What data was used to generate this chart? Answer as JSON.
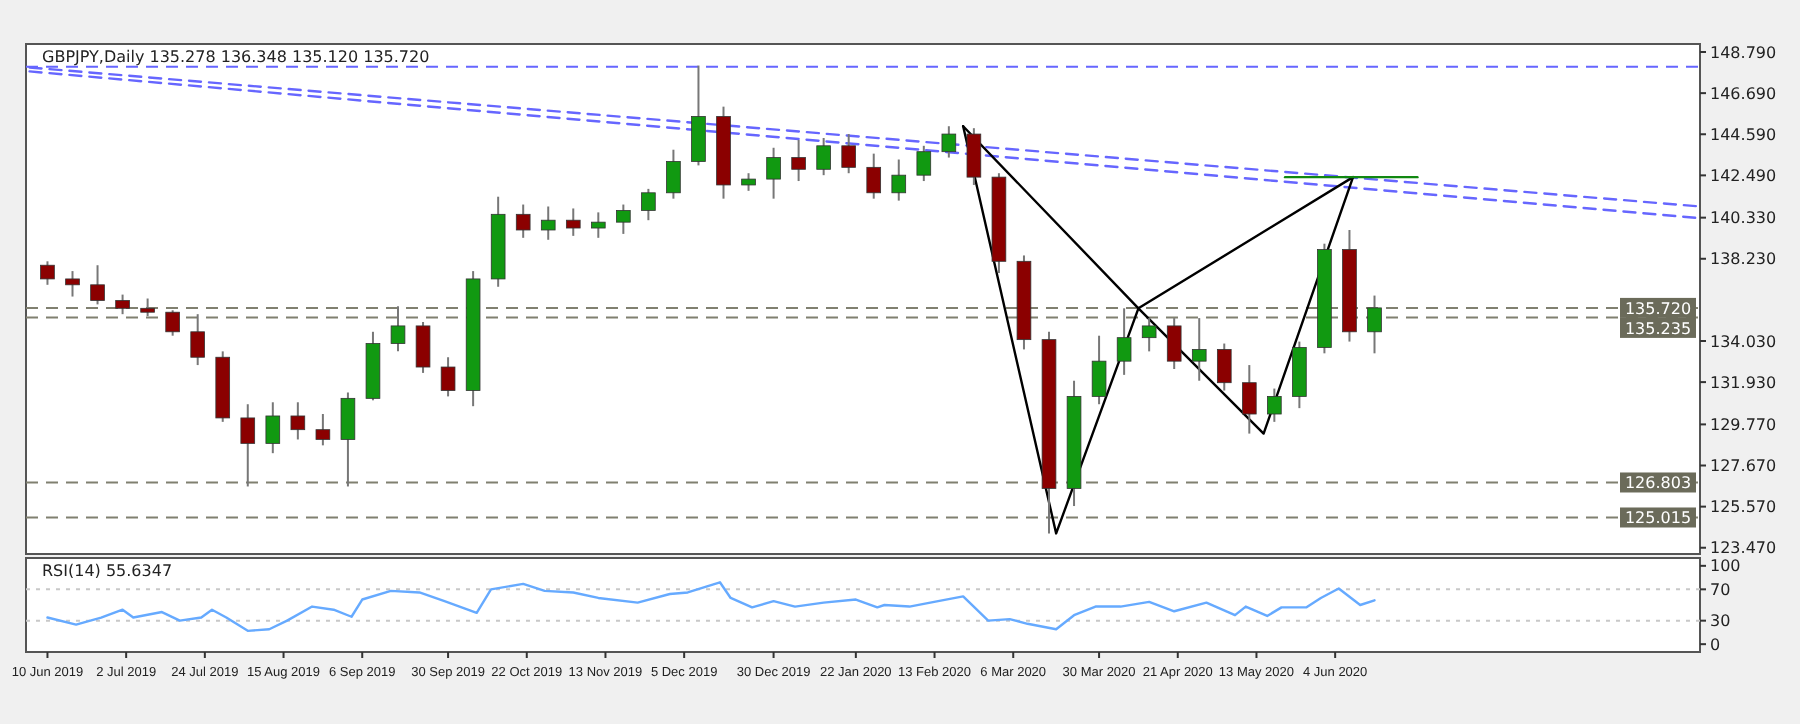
{
  "chart_data": [
    {
      "type": "candlestick",
      "title": "GBPJPY,Daily 135.278 136.348 135.120 135.720",
      "x": [
        "2019-06-10",
        "2019-06-17",
        "2019-06-24",
        "2019-07-01",
        "2019-07-08",
        "2019-07-15",
        "2019-07-22",
        "2019-07-29",
        "2019-08-05",
        "2019-08-12",
        "2019-08-19",
        "2019-08-26",
        "2019-09-02",
        "2019-09-09",
        "2019-09-16",
        "2019-09-23",
        "2019-09-30",
        "2019-10-07",
        "2019-10-14",
        "2019-10-21",
        "2019-10-28",
        "2019-11-04",
        "2019-11-11",
        "2019-11-18",
        "2019-11-25",
        "2019-12-02",
        "2019-12-09",
        "2019-12-16",
        "2019-12-23",
        "2019-12-30",
        "2020-01-06",
        "2020-01-13",
        "2020-01-20",
        "2020-01-27",
        "2020-02-03",
        "2020-02-10",
        "2020-02-17",
        "2020-02-24",
        "2020-03-02",
        "2020-03-09",
        "2020-03-16",
        "2020-03-23",
        "2020-03-30",
        "2020-04-06",
        "2020-04-13",
        "2020-04-20",
        "2020-04-27",
        "2020-05-04",
        "2020-05-11",
        "2020-05-18",
        "2020-05-25",
        "2020-06-01",
        "2020-06-08",
        "2020-06-15"
      ],
      "ohlc": [
        [
          137.9,
          138.1,
          136.9,
          137.2
        ],
        [
          137.2,
          137.6,
          136.3,
          136.9
        ],
        [
          136.9,
          137.9,
          135.9,
          136.1
        ],
        [
          136.1,
          136.4,
          135.4,
          135.7
        ],
        [
          135.7,
          136.2,
          135.3,
          135.5
        ],
        [
          135.5,
          135.6,
          134.3,
          134.5
        ],
        [
          134.5,
          135.4,
          132.8,
          133.2
        ],
        [
          133.2,
          133.5,
          129.9,
          130.1
        ],
        [
          130.1,
          130.8,
          126.6,
          128.8
        ],
        [
          128.8,
          130.9,
          128.3,
          130.2
        ],
        [
          130.2,
          130.9,
          129.0,
          129.5
        ],
        [
          129.5,
          130.3,
          128.7,
          129.0
        ],
        [
          129.0,
          131.4,
          126.6,
          131.1
        ],
        [
          131.1,
          134.5,
          131.0,
          133.9
        ],
        [
          133.9,
          135.8,
          133.5,
          134.8
        ],
        [
          134.8,
          135.0,
          132.4,
          132.7
        ],
        [
          132.7,
          133.2,
          131.2,
          131.5
        ],
        [
          131.5,
          137.6,
          130.7,
          137.2
        ],
        [
          137.2,
          141.4,
          136.8,
          140.5
        ],
        [
          140.5,
          141.0,
          139.3,
          139.7
        ],
        [
          139.7,
          140.9,
          139.2,
          140.2
        ],
        [
          140.2,
          140.8,
          139.4,
          139.8
        ],
        [
          139.8,
          140.6,
          139.3,
          140.1
        ],
        [
          140.1,
          141.0,
          139.5,
          140.7
        ],
        [
          140.7,
          141.8,
          140.2,
          141.6
        ],
        [
          141.6,
          143.8,
          141.3,
          143.2
        ],
        [
          143.2,
          148.1,
          143.0,
          145.5
        ],
        [
          145.5,
          146.0,
          141.3,
          142.0
        ],
        [
          142.0,
          142.6,
          141.7,
          142.3
        ],
        [
          142.3,
          143.9,
          141.3,
          143.4
        ],
        [
          143.4,
          144.3,
          142.2,
          142.8
        ],
        [
          142.8,
          144.4,
          142.5,
          144.0
        ],
        [
          144.0,
          144.6,
          142.6,
          142.9
        ],
        [
          142.9,
          143.6,
          141.3,
          141.6
        ],
        [
          141.6,
          143.3,
          141.2,
          142.5
        ],
        [
          142.5,
          144.0,
          142.2,
          143.7
        ],
        [
          143.7,
          145.0,
          143.4,
          144.6
        ],
        [
          144.6,
          144.9,
          142.0,
          142.4
        ],
        [
          142.4,
          142.6,
          137.5,
          138.1
        ],
        [
          138.1,
          138.4,
          133.6,
          134.1
        ],
        [
          134.1,
          134.5,
          124.2,
          126.5
        ],
        [
          126.5,
          132.0,
          125.6,
          131.2
        ],
        [
          131.2,
          134.3,
          130.8,
          133.0
        ],
        [
          133.0,
          135.7,
          132.3,
          134.2
        ],
        [
          134.2,
          135.2,
          133.5,
          134.8
        ],
        [
          134.8,
          135.2,
          132.6,
          133.0
        ],
        [
          133.0,
          135.2,
          132.0,
          133.6
        ],
        [
          133.6,
          133.9,
          131.5,
          131.9
        ],
        [
          131.9,
          132.8,
          129.3,
          130.3
        ],
        [
          130.3,
          131.6,
          129.9,
          131.2
        ],
        [
          131.2,
          134.0,
          130.6,
          133.7
        ],
        [
          133.7,
          139.0,
          133.4,
          138.7
        ],
        [
          138.7,
          139.7,
          134.0,
          134.5
        ],
        [
          134.5,
          136.35,
          133.4,
          135.72
        ]
      ],
      "colors": [
        "#8b0000",
        "#8b0000",
        "#8b0000",
        "#8b0000",
        "#8b0000",
        "#8b0000",
        "#8b0000",
        "#8b0000",
        "#8b0000",
        "#119911",
        "#8b0000",
        "#8b0000",
        "#119911",
        "#119911",
        "#119911",
        "#8b0000",
        "#8b0000",
        "#119911",
        "#119911",
        "#8b0000",
        "#119911",
        "#8b0000",
        "#119911",
        "#119911",
        "#119911",
        "#119911",
        "#119911",
        "#8b0000",
        "#119911",
        "#119911",
        "#8b0000",
        "#119911",
        "#8b0000",
        "#8b0000",
        "#119911",
        "#119911",
        "#119911",
        "#8b0000",
        "#8b0000",
        "#8b0000",
        "#8b0000",
        "#119911",
        "#119911",
        "#119911",
        "#119911",
        "#8b0000",
        "#119911",
        "#8b0000",
        "#8b0000",
        "#119911",
        "#119911",
        "#119911",
        "#8b0000",
        "#119911"
      ],
      "series": [
        {
          "type": "line",
          "color": "#6666ff",
          "line_style": "dashed",
          "x": [
            "2019-06-05",
            "2020-09-14"
          ],
          "values": [
            148.0,
            140.9
          ]
        },
        {
          "type": "line",
          "color": "#6666ff",
          "line_style": "dashed",
          "x": [
            "2019-06-05",
            "2020-09-14"
          ],
          "values": [
            147.8,
            140.3
          ]
        },
        {
          "type": "line",
          "color": "#000000",
          "line_style": "solid",
          "x": [
            "2020-02-21",
            "2020-03-18",
            "2020-04-10",
            "2020-05-15",
            "2020-06-09"
          ],
          "values": [
            145.0,
            124.2,
            135.7,
            129.3,
            142.4
          ]
        },
        {
          "type": "line",
          "color": "#000000",
          "line_style": "solid",
          "x": [
            "2020-02-21",
            "2020-04-10",
            "2020-06-09"
          ],
          "values": [
            145.0,
            135.7,
            142.4
          ]
        },
        {
          "type": "line",
          "color": "#118811",
          "line_style": "solid",
          "x": [
            "2020-05-21",
            "2020-06-27"
          ],
          "values": [
            142.4,
            142.4
          ]
        }
      ],
      "ref_lines": [
        {
          "axis": "y",
          "value": 148.04,
          "color": "#6666ff",
          "line_style": "dashed"
        },
        {
          "axis": "y",
          "value": 135.72,
          "label": "135.720",
          "color": "#808070",
          "line_style": "dashed"
        },
        {
          "axis": "y",
          "value": 135.235,
          "label": "135.235",
          "color": "#808070",
          "line_style": "dashed"
        },
        {
          "axis": "y",
          "value": 126.803,
          "label": "126.803",
          "color": "#808070",
          "line_style": "dashed"
        },
        {
          "axis": "y",
          "value": 125.015,
          "label": "125.015",
          "color": "#808070",
          "line_style": "dashed"
        }
      ],
      "xlim": [
        "2019-06-04",
        "2020-09-14"
      ],
      "ylim": [
        123.15,
        149.2
      ],
      "yticks": [
        {
          "value": 123.47,
          "label": "123.470"
        },
        {
          "value": 125.57,
          "label": "125.570"
        },
        {
          "value": 127.67,
          "label": "127.670"
        },
        {
          "value": 129.77,
          "label": "129.770"
        },
        {
          "value": 131.93,
          "label": "131.930"
        },
        {
          "value": 134.03,
          "label": "134.030"
        },
        {
          "value": 138.23,
          "label": "138.230"
        },
        {
          "value": 140.33,
          "label": "140.330"
        },
        {
          "value": 142.49,
          "label": "142.490"
        },
        {
          "value": 144.59,
          "label": "144.590"
        },
        {
          "value": 146.69,
          "label": "146.690"
        },
        {
          "value": 148.79,
          "label": "148.790"
        }
      ],
      "tick_labels": "y"
    },
    {
      "type": "line",
      "title": "RSI(14) 55.6347",
      "color": "#66aaff",
      "x": [
        "2019-06-10",
        "2019-06-18",
        "2019-06-25",
        "2019-07-01",
        "2019-07-04",
        "2019-07-12",
        "2019-07-17",
        "2019-07-23",
        "2019-07-26",
        "2019-07-30",
        "2019-08-05",
        "2019-08-11",
        "2019-08-16",
        "2019-08-23",
        "2019-08-29",
        "2019-09-03",
        "2019-09-06",
        "2019-09-14",
        "2019-09-22",
        "2019-09-29",
        "2019-10-08",
        "2019-10-12",
        "2019-10-21",
        "2019-10-27",
        "2019-11-04",
        "2019-11-11",
        "2019-11-22",
        "2019-12-01",
        "2019-12-06",
        "2019-12-15",
        "2019-12-18",
        "2019-12-24",
        "2019-12-30",
        "2020-01-05",
        "2020-01-13",
        "2020-01-22",
        "2020-01-28",
        "2020-01-30",
        "2020-02-06",
        "2020-02-14",
        "2020-02-21",
        "2020-02-28",
        "2020-03-05",
        "2020-03-10",
        "2020-03-18",
        "2020-03-23",
        "2020-03-29",
        "2020-04-05",
        "2020-04-13",
        "2020-04-20",
        "2020-04-29",
        "2020-05-07",
        "2020-05-10",
        "2020-05-16",
        "2020-05-20",
        "2020-05-27",
        "2020-05-31",
        "2020-06-05",
        "2020-06-11",
        "2020-06-15"
      ],
      "values": [
        34,
        25,
        34,
        44,
        34,
        41,
        30,
        34,
        44,
        34,
        17,
        19,
        30,
        48,
        44,
        35,
        57,
        68,
        66,
        55,
        40,
        70,
        77,
        68,
        66,
        59,
        53,
        64,
        66,
        79,
        59,
        47,
        55,
        48,
        53,
        57,
        47,
        50,
        48,
        55,
        61,
        30,
        32,
        26,
        19,
        37,
        48,
        48,
        54,
        42,
        53,
        37,
        48,
        36,
        47,
        47,
        59,
        71,
        50,
        56
      ],
      "ref_lines": [
        {
          "axis": "y",
          "value": 30,
          "color": "#c8c8c8",
          "line_style": "dotted"
        },
        {
          "axis": "y",
          "value": 70,
          "color": "#c8c8c8",
          "line_style": "dotted"
        }
      ],
      "xlim": [
        "2019-06-04",
        "2020-09-14"
      ],
      "ylim": [
        -10,
        110
      ],
      "yticks": [
        0,
        30,
        70,
        100
      ],
      "xticks": [
        {
          "value": "2019-06-10",
          "label": "10 Jun 2019"
        },
        {
          "value": "2019-07-02",
          "label": "2 Jul 2019"
        },
        {
          "value": "2019-07-24",
          "label": "24 Jul 2019"
        },
        {
          "value": "2019-08-15",
          "label": "15 Aug 2019"
        },
        {
          "value": "2019-09-06",
          "label": "6 Sep 2019"
        },
        {
          "value": "2019-09-30",
          "label": "30 Sep 2019"
        },
        {
          "value": "2019-10-22",
          "label": "22 Oct 2019"
        },
        {
          "value": "2019-11-13",
          "label": "13 Nov 2019"
        },
        {
          "value": "2019-12-05",
          "label": "5 Dec 2019"
        },
        {
          "value": "2019-12-30",
          "label": "30 Dec 2019"
        },
        {
          "value": "2020-01-22",
          "label": "22 Jan 2020"
        },
        {
          "value": "2020-02-13",
          "label": "13 Feb 2020"
        },
        {
          "value": "2020-03-06",
          "label": "6 Mar 2020"
        },
        {
          "value": "2020-03-30",
          "label": "30 Mar 2020"
        },
        {
          "value": "2020-04-21",
          "label": "21 Apr 2020"
        },
        {
          "value": "2020-05-13",
          "label": "13 May 2020"
        },
        {
          "value": "2020-06-04",
          "label": "4 Jun 2020"
        }
      ]
    }
  ]
}
